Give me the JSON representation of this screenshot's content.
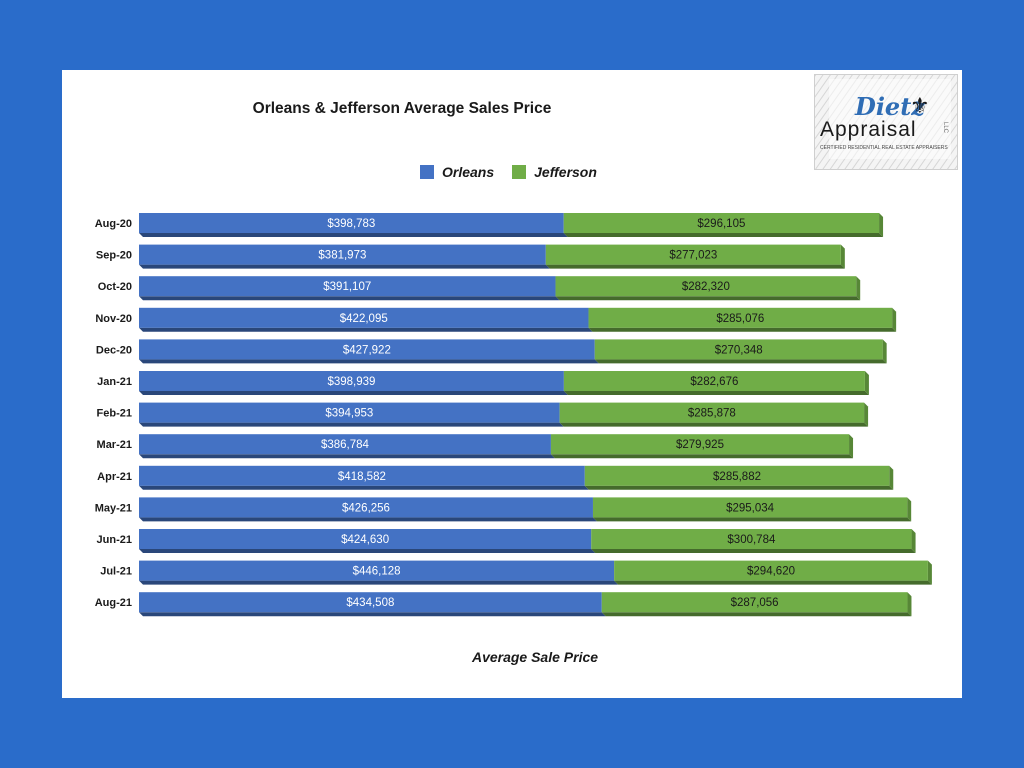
{
  "chart_data": {
    "type": "bar",
    "stacked": true,
    "orientation": "horizontal",
    "title": "Orleans & Jefferson Average Sales Price",
    "xlabel": "Average  Sale Price",
    "ylabel": "",
    "categories": [
      "Aug-20",
      "Sep-20",
      "Oct-20",
      "Nov-20",
      "Dec-20",
      "Jan-21",
      "Feb-21",
      "Mar-21",
      "Apr-21",
      "May-21",
      "Jun-21",
      "Jul-21",
      "Aug-21"
    ],
    "series": [
      {
        "name": "Orleans",
        "color": "#4472c4",
        "values": [
          398783,
          381973,
          391107,
          422095,
          427922,
          398939,
          394953,
          386784,
          418582,
          426256,
          424630,
          446128,
          434508
        ],
        "labels": [
          "$398,783",
          "$381,973",
          "$391,107",
          "$422,095",
          "$427,922",
          "$398,939",
          "$394,953",
          "$386,784",
          "$418,582",
          "$426,256",
          "$424,630",
          "$446,128",
          "$434,508"
        ]
      },
      {
        "name": "Jefferson",
        "color": "#70ad47",
        "values": [
          296105,
          277023,
          282320,
          285076,
          270348,
          282676,
          285878,
          279925,
          285882,
          295034,
          300784,
          294620,
          287056
        ],
        "labels": [
          "$296,105",
          "$277,023",
          "$282,320",
          "$285,076",
          "$270,348",
          "$282,676",
          "$285,878",
          "$279,925",
          "$285,882",
          "$295,034",
          "$300,784",
          "$294,620",
          "$287,056"
        ]
      }
    ],
    "legend_position": "top",
    "grid": false,
    "xaxis_visible": false
  },
  "logo": {
    "script_text": "Dietz",
    "main_text": "Appraisal",
    "suffix": "LLC",
    "tagline": "CERTIFIED RESIDENTIAL REAL ESTATE APPRAISERS"
  },
  "colors": {
    "background": "#2a6cca",
    "card": "#ffffff",
    "orleans": "#4472c4",
    "jefferson": "#70ad47"
  }
}
